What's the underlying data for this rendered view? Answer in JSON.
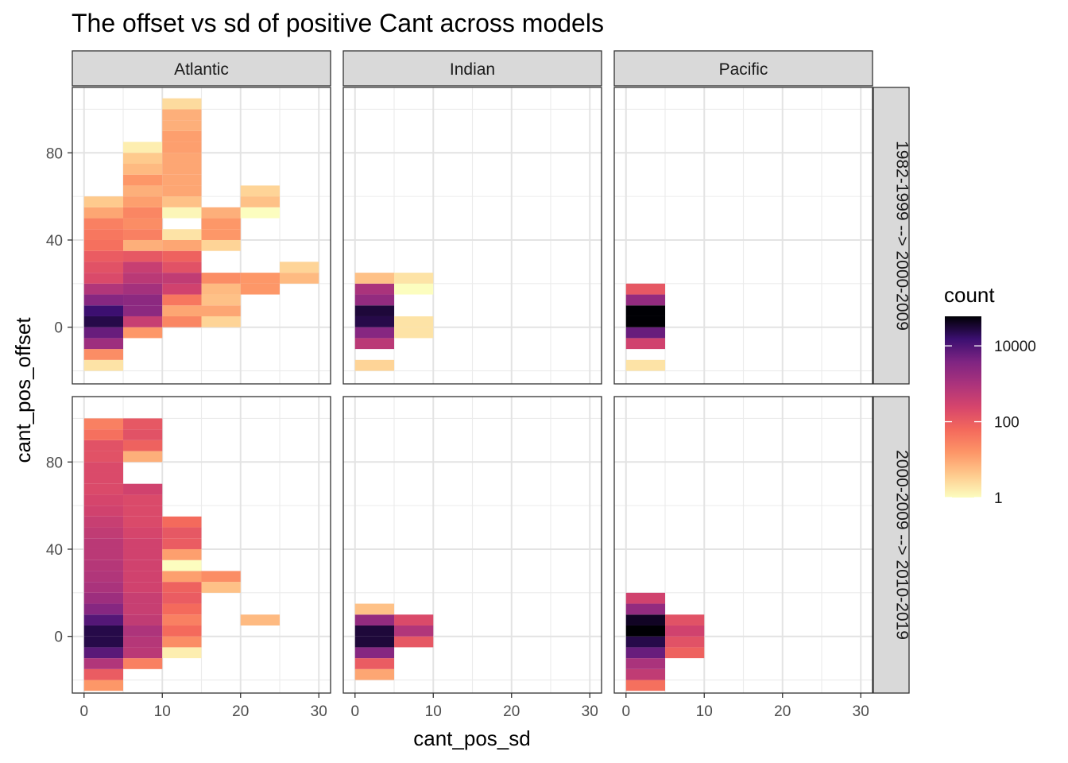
{
  "chart_data": {
    "type": "heatmap",
    "title": "The offset vs sd of positive Cant across models",
    "xlabel": "cant_pos_sd",
    "ylabel": "cant_pos_offset",
    "xlim": [
      -1.5,
      31.5
    ],
    "ylim": [
      -26,
      110
    ],
    "x_ticks": [
      0,
      10,
      20,
      30
    ],
    "y_ticks": [
      0,
      40,
      80
    ],
    "x_bin_width": 5,
    "y_bin_width": 5,
    "columns": [
      "Atlantic",
      "Indian",
      "Pacific"
    ],
    "rows": [
      "1982-1999 --> 2000-2009",
      "2000-2009 --> 2010-2019"
    ],
    "legend": {
      "title": "count",
      "scale": "log10",
      "breaks": [
        "1",
        "100",
        "10000"
      ],
      "break_values": [
        1,
        100,
        10000
      ],
      "max": 60000,
      "position": "right"
    },
    "panels": [
      {
        "column": "Atlantic",
        "row": "1982-1999 --> 2000-2009",
        "tiles": [
          [
            0,
            -20,
            2
          ],
          [
            0,
            -15,
            20
          ],
          [
            0,
            -10,
            1500
          ],
          [
            0,
            -5,
            6000
          ],
          [
            0,
            0,
            25000
          ],
          [
            0,
            5,
            15000
          ],
          [
            0,
            10,
            3000
          ],
          [
            0,
            15,
            800
          ],
          [
            0,
            20,
            200
          ],
          [
            0,
            25,
            150
          ],
          [
            0,
            30,
            100
          ],
          [
            0,
            35,
            50
          ],
          [
            0,
            40,
            40
          ],
          [
            0,
            45,
            30
          ],
          [
            0,
            50,
            10
          ],
          [
            0,
            55,
            4
          ],
          [
            5,
            -5,
            15
          ],
          [
            5,
            0,
            400
          ],
          [
            5,
            5,
            2500
          ],
          [
            5,
            10,
            2500
          ],
          [
            5,
            15,
            1200
          ],
          [
            5,
            20,
            600
          ],
          [
            5,
            25,
            400
          ],
          [
            5,
            30,
            120
          ],
          [
            5,
            35,
            8
          ],
          [
            5,
            40,
            30
          ],
          [
            5,
            45,
            20
          ],
          [
            5,
            50,
            25
          ],
          [
            5,
            55,
            12
          ],
          [
            5,
            60,
            8
          ],
          [
            5,
            65,
            15
          ],
          [
            5,
            70,
            6
          ],
          [
            5,
            75,
            4
          ],
          [
            5,
            80,
            1.5
          ],
          [
            10,
            0,
            25
          ],
          [
            10,
            5,
            10
          ],
          [
            10,
            10,
            40
          ],
          [
            10,
            15,
            300
          ],
          [
            10,
            20,
            500
          ],
          [
            10,
            25,
            150
          ],
          [
            10,
            30,
            80
          ],
          [
            10,
            35,
            10
          ],
          [
            10,
            40,
            2
          ],
          [
            10,
            50,
            1.2
          ],
          [
            10,
            55,
            5
          ],
          [
            10,
            60,
            10
          ],
          [
            10,
            65,
            10
          ],
          [
            10,
            70,
            10
          ],
          [
            10,
            75,
            10
          ],
          [
            10,
            80,
            12
          ],
          [
            10,
            85,
            12
          ],
          [
            10,
            90,
            8
          ],
          [
            10,
            95,
            8
          ],
          [
            10,
            100,
            2.5
          ],
          [
            15,
            0,
            3
          ],
          [
            15,
            5,
            10
          ],
          [
            15,
            10,
            5
          ],
          [
            15,
            15,
            6
          ],
          [
            15,
            20,
            20
          ],
          [
            15,
            35,
            3
          ],
          [
            15,
            40,
            15
          ],
          [
            15,
            45,
            15
          ],
          [
            15,
            50,
            8
          ],
          [
            20,
            15,
            15
          ],
          [
            20,
            20,
            15
          ],
          [
            20,
            50,
            1
          ],
          [
            20,
            55,
            5
          ],
          [
            20,
            60,
            3
          ],
          [
            25,
            20,
            6
          ],
          [
            25,
            25,
            3
          ]
        ]
      },
      {
        "column": "Indian",
        "row": "1982-1999 --> 2000-2009",
        "tiles": [
          [
            0,
            -20,
            3
          ],
          [
            0,
            -10,
            600
          ],
          [
            0,
            -5,
            3000
          ],
          [
            0,
            0,
            25000
          ],
          [
            0,
            5,
            30000
          ],
          [
            0,
            10,
            2000
          ],
          [
            0,
            15,
            1000
          ],
          [
            0,
            20,
            5
          ],
          [
            5,
            -5,
            2
          ],
          [
            5,
            0,
            2
          ],
          [
            5,
            15,
            1
          ],
          [
            5,
            20,
            2
          ]
        ]
      },
      {
        "column": "Pacific",
        "row": "1982-1999 --> 2000-2009",
        "tiles": [
          [
            0,
            -20,
            2
          ],
          [
            0,
            -10,
            300
          ],
          [
            0,
            -5,
            6000
          ],
          [
            0,
            0,
            60000
          ],
          [
            0,
            5,
            60000
          ],
          [
            0,
            10,
            2000
          ],
          [
            0,
            15,
            120
          ]
        ]
      },
      {
        "column": "Atlantic",
        "row": "2000-2009 --> 2010-2019",
        "tiles": [
          [
            0,
            -25,
            15
          ],
          [
            0,
            -20,
            100
          ],
          [
            0,
            -15,
            800
          ],
          [
            0,
            -10,
            8000
          ],
          [
            0,
            -5,
            25000
          ],
          [
            0,
            0,
            25000
          ],
          [
            0,
            5,
            9000
          ],
          [
            0,
            10,
            3000
          ],
          [
            0,
            15,
            1500
          ],
          [
            0,
            20,
            1000
          ],
          [
            0,
            25,
            800
          ],
          [
            0,
            30,
            700
          ],
          [
            0,
            35,
            600
          ],
          [
            0,
            40,
            600
          ],
          [
            0,
            45,
            500
          ],
          [
            0,
            50,
            400
          ],
          [
            0,
            55,
            300
          ],
          [
            0,
            60,
            250
          ],
          [
            0,
            65,
            200
          ],
          [
            0,
            70,
            200
          ],
          [
            0,
            75,
            200
          ],
          [
            0,
            80,
            150
          ],
          [
            0,
            85,
            150
          ],
          [
            0,
            90,
            50
          ],
          [
            0,
            95,
            30
          ],
          [
            5,
            -15,
            30
          ],
          [
            5,
            -10,
            600
          ],
          [
            5,
            -5,
            700
          ],
          [
            5,
            0,
            900
          ],
          [
            5,
            5,
            500
          ],
          [
            5,
            10,
            400
          ],
          [
            5,
            15,
            400
          ],
          [
            5,
            20,
            300
          ],
          [
            5,
            25,
            300
          ],
          [
            5,
            30,
            300
          ],
          [
            5,
            35,
            300
          ],
          [
            5,
            40,
            300
          ],
          [
            5,
            45,
            250
          ],
          [
            5,
            50,
            200
          ],
          [
            5,
            55,
            200
          ],
          [
            5,
            60,
            200
          ],
          [
            5,
            65,
            300
          ],
          [
            5,
            80,
            8
          ],
          [
            5,
            85,
            80
          ],
          [
            5,
            90,
            150
          ],
          [
            5,
            95,
            120
          ],
          [
            10,
            -10,
            1.5
          ],
          [
            10,
            -5,
            20
          ],
          [
            10,
            0,
            60
          ],
          [
            10,
            5,
            30
          ],
          [
            10,
            10,
            60
          ],
          [
            10,
            15,
            100
          ],
          [
            10,
            20,
            80
          ],
          [
            10,
            25,
            12
          ],
          [
            10,
            30,
            1
          ],
          [
            10,
            35,
            12
          ],
          [
            10,
            40,
            100
          ],
          [
            10,
            45,
            120
          ],
          [
            10,
            50,
            60
          ],
          [
            15,
            20,
            5
          ],
          [
            15,
            25,
            20
          ],
          [
            20,
            5,
            6
          ]
        ]
      },
      {
        "column": "Indian",
        "row": "2000-2009 --> 2010-2019",
        "tiles": [
          [
            0,
            -20,
            10
          ],
          [
            0,
            -15,
            100
          ],
          [
            0,
            -10,
            3000
          ],
          [
            0,
            -5,
            30000
          ],
          [
            0,
            0,
            30000
          ],
          [
            0,
            5,
            2000
          ],
          [
            0,
            10,
            5
          ],
          [
            5,
            -5,
            120
          ],
          [
            5,
            0,
            800
          ],
          [
            5,
            5,
            200
          ]
        ]
      },
      {
        "column": "Pacific",
        "row": "2000-2009 --> 2010-2019",
        "tiles": [
          [
            0,
            -25,
            50
          ],
          [
            0,
            -20,
            500
          ],
          [
            0,
            -15,
            1000
          ],
          [
            0,
            -10,
            6000
          ],
          [
            0,
            -5,
            25000
          ],
          [
            0,
            0,
            60000
          ],
          [
            0,
            5,
            40000
          ],
          [
            0,
            10,
            2000
          ],
          [
            0,
            15,
            300
          ],
          [
            5,
            -10,
            80
          ],
          [
            5,
            -5,
            150
          ],
          [
            5,
            0,
            300
          ],
          [
            5,
            5,
            150
          ]
        ]
      }
    ]
  }
}
